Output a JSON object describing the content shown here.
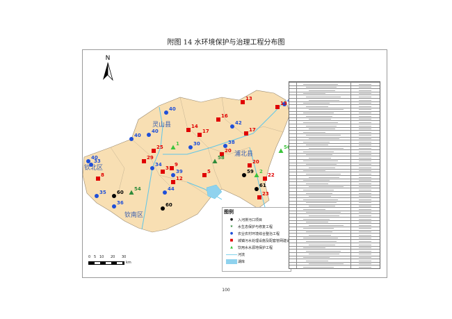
{
  "title": "附图 14  水环境保护与治理工程分布图",
  "north_label": "N",
  "regions": [
    "钦北区",
    "灵山县",
    "浦北县",
    "钦南区"
  ],
  "legend": {
    "title": "图例",
    "items": [
      {
        "label": "入河排污口项目",
        "symbol": "black-circle",
        "color": "#000000"
      },
      {
        "label": "水生态保护与修复工程",
        "symbol": "star",
        "color": "#2e8b3a"
      },
      {
        "label": "农业农村环境综合整治工程",
        "symbol": "blue-circle",
        "color": "#1f4fd8"
      },
      {
        "label": "城镇污水处理设施及配套管网建设",
        "symbol": "red-square",
        "color": "#e00000"
      },
      {
        "label": "饮用水水源地保护工程",
        "symbol": "green-triangle",
        "color": "#3cc43c"
      },
      {
        "label": "河流",
        "symbol": "line",
        "color": "#7fd3ec"
      },
      {
        "label": "湖库",
        "symbol": "fill",
        "color": "#8fd2ee"
      }
    ]
  },
  "scale_bar": {
    "ticks": [
      "0",
      "5",
      "10",
      "20",
      "30"
    ],
    "unit": "km"
  },
  "markers": [
    {
      "type": "blue-circle",
      "label": "40"
    },
    {
      "type": "blue-circle",
      "label": "40"
    },
    {
      "type": "blue-circle",
      "label": "40"
    },
    {
      "type": "blue-circle",
      "label": "40"
    },
    {
      "type": "blue-circle",
      "label": "33"
    },
    {
      "type": "blue-circle",
      "label": "35"
    },
    {
      "type": "blue-circle",
      "label": "34"
    },
    {
      "type": "blue-circle",
      "label": "36"
    },
    {
      "type": "blue-circle",
      "label": "39"
    },
    {
      "type": "blue-circle",
      "label": "38"
    },
    {
      "type": "blue-circle",
      "label": "47"
    },
    {
      "type": "blue-circle",
      "label": "42"
    },
    {
      "type": "blue-circle",
      "label": "30"
    },
    {
      "type": "blue-circle",
      "label": "44"
    },
    {
      "type": "red-square",
      "label": "8"
    },
    {
      "type": "red-square",
      "label": "25"
    },
    {
      "type": "red-square",
      "label": "29"
    },
    {
      "type": "red-square",
      "label": "9"
    },
    {
      "type": "red-square",
      "label": "17"
    },
    {
      "type": "red-square",
      "label": "17"
    },
    {
      "type": "red-square",
      "label": "14"
    },
    {
      "type": "red-square",
      "label": "13"
    },
    {
      "type": "red-square",
      "label": "13"
    },
    {
      "type": "red-square",
      "label": "16"
    },
    {
      "type": "red-square",
      "label": "20"
    },
    {
      "type": "red-square",
      "label": "20"
    },
    {
      "type": "red-square",
      "label": "12"
    },
    {
      "type": "red-square",
      "label": "22"
    },
    {
      "type": "red-square",
      "label": "23"
    },
    {
      "type": "red-square",
      "label": "5"
    },
    {
      "type": "red-square",
      "label": "3"
    },
    {
      "type": "black-circle",
      "label": "60"
    },
    {
      "type": "black-circle",
      "label": "60"
    },
    {
      "type": "black-circle",
      "label": "59"
    },
    {
      "type": "black-circle",
      "label": "61"
    },
    {
      "type": "green-triangle",
      "label": "2"
    },
    {
      "type": "green-triangle",
      "label": "1"
    },
    {
      "type": "green-triangle",
      "label": "56"
    },
    {
      "type": "star",
      "label": "54"
    },
    {
      "type": "star",
      "label": "58"
    }
  ],
  "table_rows": 58,
  "page_number": "100"
}
